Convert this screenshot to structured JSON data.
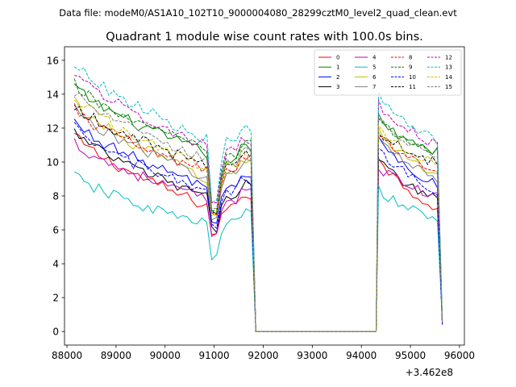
{
  "chart_data": {
    "type": "line",
    "suptitle": "Data file: modeM0/AS1A10_102T10_9000004080_28299cztM0_level2_quad_clean.evt",
    "title": "Quadrant 1 module wise count rates with 100.0s bins.",
    "xlabel": "",
    "ylabel": "",
    "offset_label": "+3.462e8",
    "xlim": [
      87950,
      96100
    ],
    "ylim": [
      -0.8,
      16.8
    ],
    "x_ticks": [
      88000,
      89000,
      90000,
      91000,
      92000,
      93000,
      94000,
      95000,
      96000
    ],
    "x_tick_labels": [
      "88000",
      "89000",
      "90000",
      "91000",
      "92000",
      "93000",
      "94000",
      "95000",
      "96000"
    ],
    "y_ticks": [
      0,
      2,
      4,
      6,
      8,
      10,
      12,
      14,
      16
    ],
    "y_tick_labels": [
      "0",
      "2",
      "4",
      "6",
      "8",
      "10",
      "12",
      "14",
      "16"
    ],
    "legend_position": "top-right",
    "segments": [
      {
        "x_start": 88150,
        "x_end": 91750,
        "dip_x": 91000
      },
      {
        "x_start": 94350,
        "x_end": 95650
      }
    ],
    "series": [
      {
        "name": "0",
        "color": "#ff0000",
        "dashed": false,
        "start": 11.6,
        "end": 7.3,
        "dip": 5.8,
        "recover": 7.4,
        "g_start": 10.4,
        "g_end": 7.2
      },
      {
        "name": "1",
        "color": "#008000",
        "dashed": false,
        "start": 14.5,
        "end": 10.4,
        "dip": 7.0,
        "recover": 10.2,
        "g_start": 12.6,
        "g_end": 10.6
      },
      {
        "name": "2",
        "color": "#0000ff",
        "dashed": false,
        "start": 12.4,
        "end": 8.4,
        "dip": 6.5,
        "recover": 8.6,
        "g_start": 11.4,
        "g_end": 8.6
      },
      {
        "name": "3",
        "color": "#000000",
        "dashed": false,
        "start": 11.8,
        "end": 7.8,
        "dip": 6.0,
        "recover": 8.1,
        "g_start": 10.2,
        "g_end": 7.8
      },
      {
        "name": "4",
        "color": "#bf00bf",
        "dashed": false,
        "start": 11.2,
        "end": 7.7,
        "dip": 5.6,
        "recover": 7.8,
        "g_start": 9.8,
        "g_end": 7.9
      },
      {
        "name": "5",
        "color": "#00bfbf",
        "dashed": false,
        "start": 9.2,
        "end": 6.2,
        "dip": 4.4,
        "recover": 6.4,
        "g_start": 8.4,
        "g_end": 6.6
      },
      {
        "name": "6",
        "color": "#bfbf00",
        "dashed": false,
        "start": 13.6,
        "end": 8.9,
        "dip": 6.8,
        "recover": 9.4,
        "g_start": 12.0,
        "g_end": 9.2
      },
      {
        "name": "7",
        "color": "#808080",
        "dashed": false,
        "start": 13.2,
        "end": 9.0,
        "dip": 6.7,
        "recover": 9.3,
        "g_start": 11.6,
        "g_end": 9.1
      },
      {
        "name": "8",
        "color": "#ff0000",
        "dashed": true,
        "start": 13.1,
        "end": 9.3,
        "dip": 6.9,
        "recover": 9.6,
        "g_start": 11.8,
        "g_end": 9.5
      },
      {
        "name": "9",
        "color": "#008000",
        "dashed": true,
        "start": 14.6,
        "end": 10.6,
        "dip": 7.2,
        "recover": 10.4,
        "g_start": 12.4,
        "g_end": 10.6
      },
      {
        "name": "10",
        "color": "#0000ff",
        "dashed": true,
        "start": 12.0,
        "end": 8.1,
        "dip": 6.2,
        "recover": 8.3,
        "g_start": 10.8,
        "g_end": 8.3
      },
      {
        "name": "11",
        "color": "#000000",
        "dashed": true,
        "start": 13.4,
        "end": 9.7,
        "dip": 7.1,
        "recover": 9.8,
        "g_start": 11.9,
        "g_end": 9.9
      },
      {
        "name": "12",
        "color": "#bf00bf",
        "dashed": true,
        "start": 15.4,
        "end": 10.8,
        "dip": 7.4,
        "recover": 10.6,
        "g_start": 13.4,
        "g_end": 11.0
      },
      {
        "name": "13",
        "color": "#00bfbf",
        "dashed": true,
        "start": 15.9,
        "end": 11.2,
        "dip": 7.6,
        "recover": 11.3,
        "g_start": 14.0,
        "g_end": 11.2
      },
      {
        "name": "14",
        "color": "#bfbf00",
        "dashed": true,
        "start": 13.9,
        "end": 9.6,
        "dip": 7.0,
        "recover": 9.8,
        "g_start": 12.2,
        "g_end": 9.8
      },
      {
        "name": "15",
        "color": "#808080",
        "dashed": true,
        "start": 14.1,
        "end": 10.0,
        "dip": 7.2,
        "recover": 10.0,
        "g_start": 12.8,
        "g_end": 10.1
      }
    ]
  }
}
